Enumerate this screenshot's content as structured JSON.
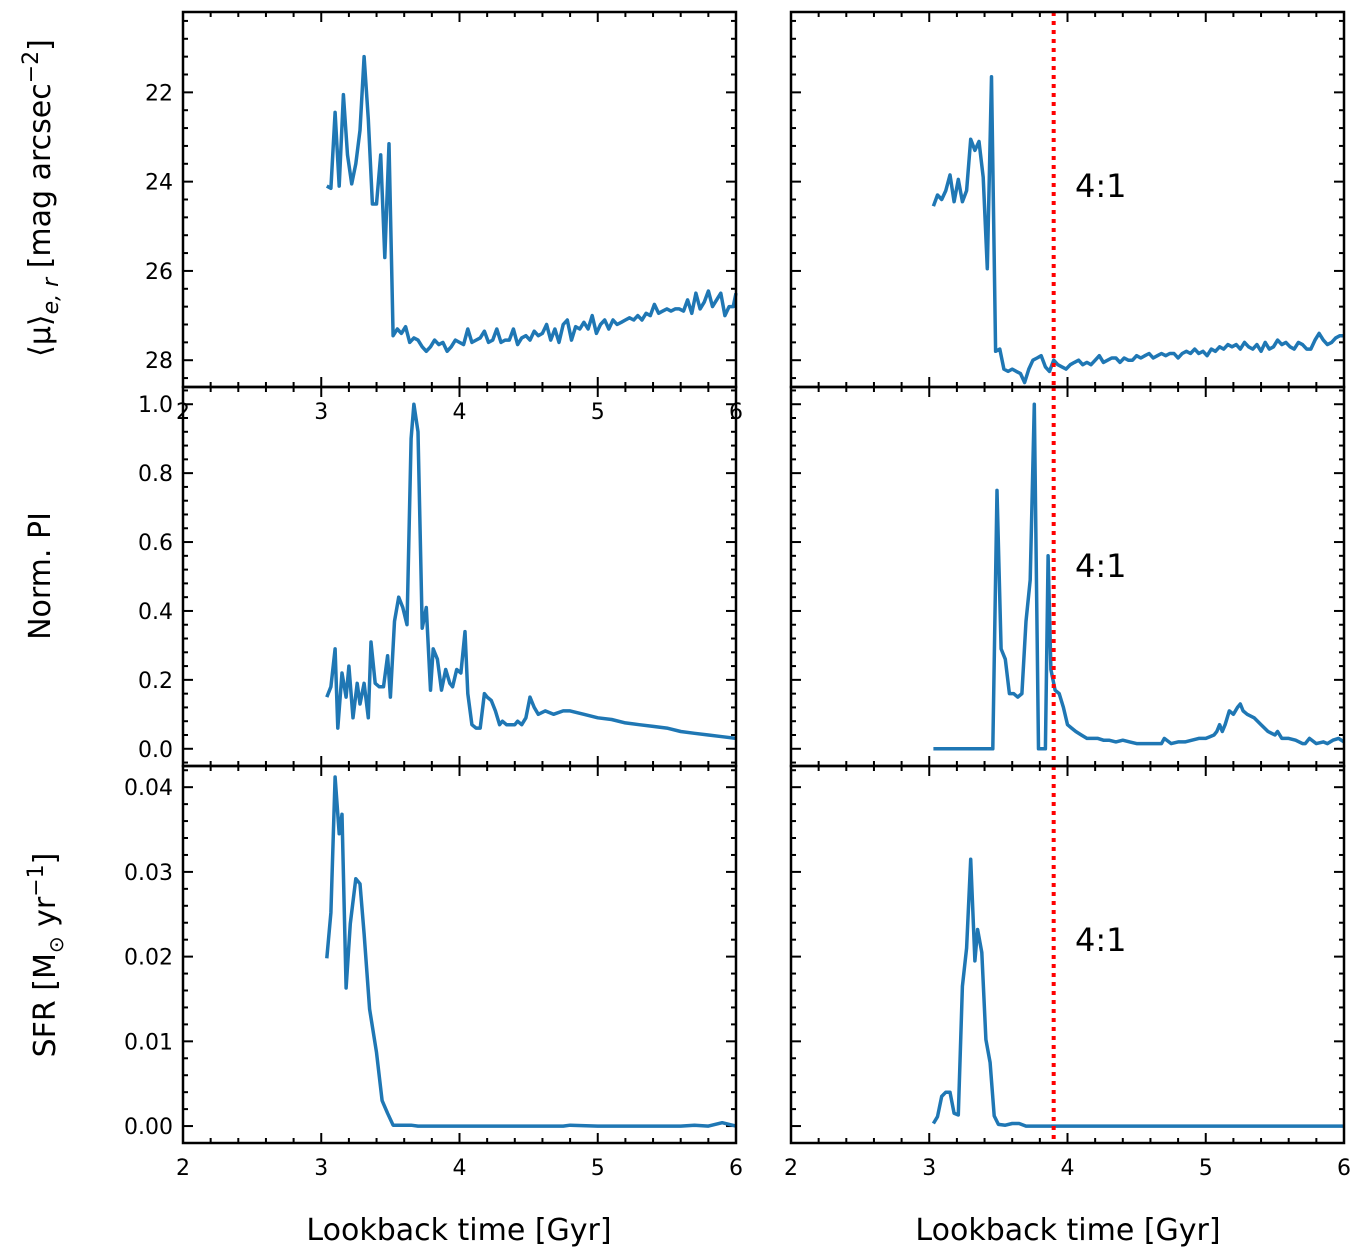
{
  "figure": {
    "xlabel": "Lookback time [Gyr]",
    "line_color": "#1f77b4",
    "merger_line_color": "#ff0000"
  },
  "rows": [
    {
      "ylabel": "⟨μ⟩",
      "ylabel_sub": "e, r",
      "ylabel_unit_pre": " [mag arcsec",
      "ylabel_unit_sup": "−2",
      "ylabel_unit_post": "]"
    },
    {
      "ylabel": "Norm. PI"
    },
    {
      "ylabel": "SFR [M",
      "ylabel_sub": "⊙",
      "ylabel_unit_pre": " yr",
      "ylabel_unit_sup": "−1",
      "ylabel_unit_post": "]"
    }
  ],
  "chart_data": [
    {
      "type": "line",
      "panel": "top-left",
      "invert_y": true,
      "ylim": [
        28.6,
        20.2
      ],
      "xlim": [
        2,
        6
      ],
      "yticks": [
        22,
        24,
        26,
        28
      ],
      "ytick_labels": [
        "22",
        "24",
        "26",
        "28"
      ],
      "xticks": [
        2,
        3,
        4,
        5,
        6
      ],
      "xtick_labels": [
        "2",
        "3",
        "4",
        "5",
        "6"
      ],
      "ylabel": "⟨μ⟩e,r [mag arcsec−2]",
      "xlabel": "",
      "x": [
        3.04,
        3.07,
        3.1,
        3.13,
        3.16,
        3.19,
        3.22,
        3.25,
        3.28,
        3.31,
        3.34,
        3.37,
        3.4,
        3.43,
        3.46,
        3.49,
        3.52,
        3.55,
        3.58,
        3.61,
        3.64,
        3.67,
        3.7,
        3.73,
        3.76,
        3.79,
        3.82,
        3.85,
        3.88,
        3.91,
        3.94,
        3.97,
        4.0,
        4.03,
        4.06,
        4.09,
        4.12,
        4.15,
        4.18,
        4.21,
        4.24,
        4.27,
        4.3,
        4.33,
        4.36,
        4.39,
        4.42,
        4.45,
        4.48,
        4.51,
        4.54,
        4.57,
        4.6,
        4.63,
        4.66,
        4.69,
        4.72,
        4.75,
        4.78,
        4.81,
        4.84,
        4.87,
        4.9,
        4.93,
        4.96,
        4.99,
        5.02,
        5.05,
        5.08,
        5.11,
        5.14,
        5.17,
        5.2,
        5.23,
        5.26,
        5.29,
        5.32,
        5.35,
        5.38,
        5.41,
        5.44,
        5.47,
        5.5,
        5.53,
        5.56,
        5.59,
        5.62,
        5.65,
        5.68,
        5.71,
        5.74,
        5.77,
        5.8,
        5.83,
        5.86,
        5.89,
        5.92,
        5.95,
        5.98,
        6.0
      ],
      "y": [
        24.1,
        24.15,
        22.45,
        24.1,
        22.05,
        23.4,
        24.05,
        23.6,
        22.85,
        21.2,
        22.6,
        24.5,
        24.5,
        23.4,
        25.7,
        23.15,
        27.45,
        27.3,
        27.4,
        27.25,
        27.6,
        27.5,
        27.55,
        27.7,
        27.8,
        27.7,
        27.55,
        27.65,
        27.6,
        27.8,
        27.7,
        27.55,
        27.6,
        27.65,
        27.3,
        27.6,
        27.55,
        27.5,
        27.35,
        27.6,
        27.55,
        27.3,
        27.6,
        27.55,
        27.55,
        27.3,
        27.65,
        27.5,
        27.45,
        27.55,
        27.35,
        27.45,
        27.4,
        27.2,
        27.55,
        27.3,
        27.6,
        27.2,
        27.1,
        27.55,
        27.25,
        27.3,
        27.15,
        27.3,
        27.0,
        27.4,
        27.2,
        27.1,
        27.3,
        27.1,
        27.2,
        27.15,
        27.1,
        27.05,
        27.1,
        27.0,
        27.1,
        26.95,
        27.0,
        26.75,
        26.95,
        26.9,
        26.85,
        26.9,
        26.85,
        26.85,
        26.9,
        26.65,
        26.95,
        26.5,
        26.85,
        26.7,
        26.45,
        26.8,
        26.65,
        26.5,
        27.0,
        26.8,
        26.8,
        26.5
      ]
    },
    {
      "type": "line",
      "panel": "top-right",
      "invert_y": true,
      "ylim": [
        28.6,
        20.2
      ],
      "xlim": [
        2,
        6
      ],
      "merger_x": 3.9,
      "annotation": "4:1",
      "xticks": [
        2,
        3,
        4,
        5,
        6
      ],
      "x": [
        3.03,
        3.06,
        3.09,
        3.12,
        3.15,
        3.18,
        3.21,
        3.24,
        3.27,
        3.3,
        3.33,
        3.36,
        3.39,
        3.42,
        3.45,
        3.48,
        3.51,
        3.54,
        3.57,
        3.6,
        3.63,
        3.66,
        3.69,
        3.72,
        3.75,
        3.78,
        3.81,
        3.84,
        3.87,
        3.9,
        3.93,
        3.96,
        3.99,
        4.02,
        4.05,
        4.08,
        4.11,
        4.14,
        4.17,
        4.2,
        4.23,
        4.26,
        4.29,
        4.32,
        4.35,
        4.38,
        4.41,
        4.44,
        4.47,
        4.5,
        4.53,
        4.56,
        4.59,
        4.62,
        4.65,
        4.68,
        4.71,
        4.74,
        4.77,
        4.8,
        4.83,
        4.86,
        4.89,
        4.92,
        4.95,
        4.98,
        5.01,
        5.04,
        5.07,
        5.1,
        5.13,
        5.16,
        5.19,
        5.22,
        5.25,
        5.28,
        5.31,
        5.34,
        5.37,
        5.4,
        5.43,
        5.46,
        5.49,
        5.52,
        5.55,
        5.58,
        5.61,
        5.64,
        5.67,
        5.7,
        5.73,
        5.76,
        5.79,
        5.82,
        5.85,
        5.88,
        5.91,
        5.94,
        5.97,
        6.0
      ],
      "y": [
        24.55,
        24.3,
        24.4,
        24.2,
        23.85,
        24.45,
        23.95,
        24.45,
        24.2,
        23.05,
        23.3,
        23.1,
        23.9,
        25.95,
        21.65,
        27.8,
        27.75,
        28.2,
        28.25,
        28.2,
        28.25,
        28.3,
        28.5,
        28.2,
        28.0,
        27.95,
        27.9,
        28.15,
        28.25,
        28.0,
        28.1,
        28.15,
        28.2,
        28.1,
        28.05,
        28.0,
        28.1,
        28.05,
        28.1,
        28.0,
        27.9,
        28.05,
        28.0,
        27.95,
        27.95,
        28.05,
        27.95,
        28.0,
        28.0,
        27.9,
        27.95,
        27.9,
        27.85,
        27.95,
        27.9,
        27.85,
        27.9,
        27.85,
        27.85,
        27.95,
        27.85,
        27.8,
        27.85,
        27.75,
        27.85,
        27.8,
        27.9,
        27.75,
        27.8,
        27.7,
        27.75,
        27.65,
        27.7,
        27.65,
        27.75,
        27.6,
        27.7,
        27.75,
        27.65,
        27.8,
        27.6,
        27.75,
        27.7,
        27.55,
        27.65,
        27.6,
        27.7,
        27.75,
        27.6,
        27.65,
        27.75,
        27.75,
        27.55,
        27.4,
        27.55,
        27.65,
        27.6,
        27.5,
        27.45,
        27.45
      ]
    },
    {
      "type": "line",
      "panel": "middle-left",
      "ylim": [
        -0.05,
        1.05
      ],
      "xlim": [
        2,
        6
      ],
      "yticks": [
        0.0,
        0.2,
        0.4,
        0.6,
        0.8,
        1.0
      ],
      "ytick_labels": [
        "0.0",
        "0.2",
        "0.4",
        "0.6",
        "0.8",
        "1.0"
      ],
      "xticks": [
        2,
        3,
        4,
        5,
        6
      ],
      "ylabel": "Norm. PI",
      "x": [
        3.04,
        3.07,
        3.1,
        3.12,
        3.15,
        3.18,
        3.2,
        3.23,
        3.26,
        3.28,
        3.31,
        3.34,
        3.36,
        3.39,
        3.42,
        3.45,
        3.48,
        3.5,
        3.53,
        3.56,
        3.59,
        3.62,
        3.65,
        3.67,
        3.7,
        3.73,
        3.76,
        3.79,
        3.81,
        3.84,
        3.87,
        3.9,
        3.93,
        3.95,
        3.98,
        4.01,
        4.04,
        4.06,
        4.09,
        4.12,
        4.15,
        4.18,
        4.2,
        4.23,
        4.26,
        4.29,
        4.31,
        4.34,
        4.37,
        4.4,
        4.42,
        4.45,
        4.48,
        4.51,
        4.54,
        4.57,
        4.62,
        4.68,
        4.75,
        4.8,
        4.9,
        5.0,
        5.1,
        5.2,
        5.3,
        5.4,
        5.5,
        5.6,
        5.7,
        5.8,
        5.9,
        6.0
      ],
      "y": [
        0.15,
        0.18,
        0.29,
        0.06,
        0.22,
        0.15,
        0.24,
        0.09,
        0.19,
        0.13,
        0.19,
        0.09,
        0.31,
        0.19,
        0.18,
        0.18,
        0.27,
        0.15,
        0.37,
        0.44,
        0.41,
        0.36,
        0.9,
        1.0,
        0.92,
        0.35,
        0.41,
        0.17,
        0.29,
        0.26,
        0.17,
        0.23,
        0.19,
        0.18,
        0.23,
        0.22,
        0.34,
        0.16,
        0.07,
        0.06,
        0.06,
        0.16,
        0.15,
        0.14,
        0.11,
        0.07,
        0.08,
        0.07,
        0.07,
        0.07,
        0.08,
        0.07,
        0.09,
        0.15,
        0.12,
        0.1,
        0.11,
        0.1,
        0.11,
        0.11,
        0.1,
        0.09,
        0.085,
        0.075,
        0.07,
        0.065,
        0.06,
        0.05,
        0.045,
        0.04,
        0.035,
        0.03
      ]
    },
    {
      "type": "line",
      "panel": "middle-right",
      "ylim": [
        -0.05,
        1.05
      ],
      "xlim": [
        2,
        6
      ],
      "merger_x": 3.9,
      "annotation": "4:1",
      "xticks": [
        2,
        3,
        4,
        5,
        6
      ],
      "x": [
        3.03,
        3.1,
        3.2,
        3.3,
        3.4,
        3.46,
        3.49,
        3.52,
        3.55,
        3.58,
        3.61,
        3.64,
        3.67,
        3.7,
        3.73,
        3.76,
        3.79,
        3.81,
        3.84,
        3.86,
        3.88,
        3.91,
        3.94,
        3.97,
        4.0,
        4.03,
        4.06,
        4.1,
        4.14,
        4.18,
        4.22,
        4.26,
        4.3,
        4.35,
        4.4,
        4.45,
        4.5,
        4.55,
        4.6,
        4.65,
        4.68,
        4.7,
        4.75,
        4.8,
        4.85,
        4.9,
        4.95,
        5.0,
        5.03,
        5.06,
        5.08,
        5.1,
        5.12,
        5.14,
        5.17,
        5.2,
        5.23,
        5.25,
        5.27,
        5.3,
        5.35,
        5.4,
        5.45,
        5.5,
        5.52,
        5.55,
        5.6,
        5.65,
        5.7,
        5.72,
        5.75,
        5.8,
        5.85,
        5.88,
        5.92,
        5.96,
        6.0
      ],
      "y": [
        0.0,
        0.0,
        0.0,
        0.0,
        0.0,
        0.0,
        0.75,
        0.29,
        0.26,
        0.16,
        0.16,
        0.15,
        0.16,
        0.37,
        0.49,
        1.0,
        0.0,
        0.0,
        0.0,
        0.56,
        0.23,
        0.17,
        0.16,
        0.12,
        0.07,
        0.06,
        0.05,
        0.04,
        0.03,
        0.03,
        0.03,
        0.025,
        0.025,
        0.02,
        0.025,
        0.02,
        0.015,
        0.015,
        0.015,
        0.015,
        0.015,
        0.03,
        0.015,
        0.02,
        0.02,
        0.025,
        0.03,
        0.03,
        0.035,
        0.04,
        0.05,
        0.07,
        0.05,
        0.07,
        0.11,
        0.1,
        0.12,
        0.13,
        0.11,
        0.1,
        0.09,
        0.07,
        0.05,
        0.04,
        0.05,
        0.03,
        0.03,
        0.025,
        0.015,
        0.015,
        0.03,
        0.015,
        0.02,
        0.015,
        0.025,
        0.03,
        0.02
      ]
    },
    {
      "type": "line",
      "panel": "bottom-left",
      "ylim": [
        -0.002,
        0.0425
      ],
      "xlim": [
        2,
        6
      ],
      "yticks": [
        0.0,
        0.01,
        0.02,
        0.03,
        0.04
      ],
      "ytick_labels": [
        "0.00",
        "0.01",
        "0.02",
        "0.03",
        "0.04"
      ],
      "xticks": [
        2,
        3,
        4,
        5,
        6
      ],
      "xtick_labels": [
        "2",
        "3",
        "4",
        "5",
        "6"
      ],
      "ylabel": "SFR [M⊙ yr−1]",
      "xlabel": "Lookback time [Gyr]",
      "x": [
        3.04,
        3.07,
        3.1,
        3.13,
        3.15,
        3.18,
        3.21,
        3.25,
        3.28,
        3.31,
        3.35,
        3.4,
        3.44,
        3.48,
        3.52,
        3.55,
        3.6,
        3.65,
        3.7,
        3.8,
        4.0,
        4.2,
        4.4,
        4.6,
        4.75,
        4.8,
        5.0,
        5.2,
        5.4,
        5.6,
        5.7,
        5.8,
        5.9,
        6.0
      ],
      "y": [
        0.0198,
        0.0252,
        0.0412,
        0.0345,
        0.0368,
        0.0163,
        0.0239,
        0.0292,
        0.0286,
        0.0227,
        0.0138,
        0.0087,
        0.003,
        0.0015,
        0.0001,
        0.0001,
        0.0001,
        0.0001,
        0.0,
        0.0,
        0.0,
        0.0,
        0.0,
        0.0,
        0.0,
        0.0001,
        0.0,
        0.0,
        0.0,
        0.0,
        0.0001,
        0.0,
        0.0004,
        0.0
      ]
    },
    {
      "type": "line",
      "panel": "bottom-right",
      "ylim": [
        -0.002,
        0.0425
      ],
      "xlim": [
        2,
        6
      ],
      "merger_x": 3.9,
      "annotation": "4:1",
      "xticks": [
        2,
        3,
        4,
        5,
        6
      ],
      "xtick_labels": [
        "2",
        "3",
        "4",
        "5",
        "6"
      ],
      "xlabel": "Lookback time [Gyr]",
      "x": [
        3.03,
        3.06,
        3.09,
        3.12,
        3.15,
        3.18,
        3.21,
        3.24,
        3.27,
        3.3,
        3.33,
        3.35,
        3.38,
        3.41,
        3.44,
        3.47,
        3.5,
        3.55,
        3.6,
        3.65,
        3.7,
        3.8,
        4.0,
        4.5,
        5.0,
        5.5,
        6.0
      ],
      "y": [
        0.0003,
        0.0011,
        0.0035,
        0.004,
        0.004,
        0.0015,
        0.0013,
        0.0165,
        0.021,
        0.0315,
        0.0195,
        0.0232,
        0.0205,
        0.0102,
        0.0075,
        0.0012,
        0.0002,
        0.0001,
        0.0003,
        0.0003,
        0.0,
        0.0,
        0.0,
        0.0,
        0.0,
        0.0,
        0.0
      ]
    }
  ]
}
